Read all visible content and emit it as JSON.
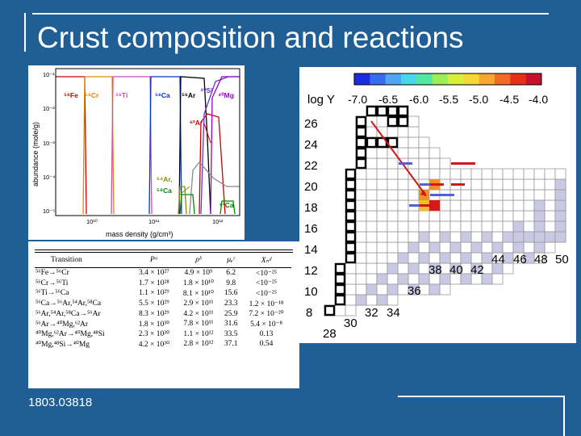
{
  "slide": {
    "title": "Crust composition and reactions",
    "footer_id": "1803.03818"
  },
  "abundance_plot": {
    "ylabel": "abundance (mole/g)",
    "xlabel": "mass density (g/cm³)",
    "y_ticks": [
      "10⁻¹",
      "10⁻²",
      "10⁻³",
      "10⁻⁴",
      "10⁻⁵"
    ],
    "x_ticks": [
      "10¹⁰",
      "10¹¹",
      "10¹²"
    ],
    "labels": [
      {
        "text": "⁵⁶Fe",
        "color": "#cc0000"
      },
      {
        "text": "⁵⁶Cr",
        "color": "#e08a00"
      },
      {
        "text": "⁵⁶Ti",
        "color": "#e040c0"
      },
      {
        "text": "⁵⁶Ca",
        "color": "#0033cc"
      },
      {
        "text": "⁵⁶Ar",
        "color": "#000000"
      },
      {
        "text": "⁴⁰Si",
        "color": "#6633cc"
      },
      {
        "text": "⁴⁰Mg",
        "color": "#9900cc"
      },
      {
        "text": "⁶²Ar",
        "color": "#cc0000"
      },
      {
        "text": "⁵⁴Ar,",
        "color": "#8a8a00"
      },
      {
        "text": "⁵⁸Ca",
        "color": "#008800"
      },
      {
        "text": "⁶¹Ca",
        "color": "#008800"
      }
    ],
    "colors": {
      "fe": "#cc0000",
      "cr": "#e08a00",
      "ti": "#e040c0",
      "ca": "#0033cc",
      "ar": "#000000",
      "si": "#6633cc",
      "mg": "#9900cc",
      "grey": "#888888",
      "green": "#008800",
      "olive": "#8a8a00"
    }
  },
  "transition_table": {
    "headers": [
      "Transition",
      "Pᵃ",
      "ρᵇ",
      "μₑᶜ",
      "Xₙᵈ"
    ],
    "rows": [
      [
        "⁵⁶Fe→⁵⁶Cr",
        "3.4 × 10²⁷",
        "4.9 × 10⁹",
        "6.2",
        "<10⁻²⁵"
      ],
      [
        "⁵⁶Cr→⁵⁶Ti",
        "1.7 × 10²⁸",
        "1.8 × 10¹⁰",
        "9.8",
        "<10⁻²⁵"
      ],
      [
        "⁵⁶Ti→⁵⁶Ca",
        "1.1 × 10²⁹",
        "8.1 × 10¹⁰",
        "15.6",
        "<10⁻²⁵"
      ],
      [
        "⁵⁶Ca→⁵⁶Ar,⁵⁴Ar,⁵⁸Ca",
        "5.5 × 10²⁹",
        "2.9 × 10¹¹",
        "23.3",
        "1.2 × 10⁻¹⁸"
      ],
      [
        "⁵⁶Ar,⁵⁴Ar,⁵⁸Ca→⁵⁶Ar",
        "8.3 × 10²⁹",
        "4.2 × 10¹¹",
        "25.9",
        "7.2 × 10⁻²⁰"
      ],
      [
        "⁵⁶Ar→⁴⁰Mg,⁶²Ar",
        "1.8 × 10³⁰",
        "7.8 × 10¹¹",
        "31.6",
        "5.4 × 10⁻⁸"
      ],
      [
        "⁴⁰Mg,⁶²Ar→⁴⁰Mg,⁴⁸Si",
        "2.3 × 10³⁰",
        "1.1 × 10¹²",
        "33.5",
        "0.13"
      ],
      [
        "⁴⁰Mg,⁴⁸Si→⁴⁰Mg",
        "4.2 × 10³⁰",
        "2.8 × 10¹²",
        "37.1",
        "0.54"
      ]
    ]
  },
  "nuclide_chart": {
    "colorbar_label": "log Y",
    "colorbar_ticks": [
      "-7.0",
      "-6.5",
      "-6.0",
      "-5.5",
      "-5.0",
      "-4.5",
      "-4.0"
    ],
    "colorbar_colors": [
      "#1a2be0",
      "#3a6af0",
      "#4fa5f5",
      "#45d8e8",
      "#50e8a0",
      "#9cee55",
      "#d8ef3a",
      "#f6d733",
      "#f7a630",
      "#f26a24",
      "#e83018",
      "#c8102a"
    ],
    "proton_labels": [
      "26",
      "24",
      "22",
      "20",
      "18",
      "16",
      "14",
      "12",
      "10",
      "8"
    ],
    "neutron_labels": [
      "28",
      "30",
      "32",
      "34",
      "36",
      "38",
      "40",
      "42",
      "44",
      "46",
      "48",
      "50"
    ],
    "colors": {
      "black_cell": "#000000",
      "stable_fill": "#c9c9e6",
      "grid": "#999999",
      "arrow": "#d01818",
      "bar": "#5560d8",
      "bar_red": "#d01818",
      "orange": "#f0902a",
      "red": "#d81818",
      "yellow": "#f0c020"
    }
  }
}
